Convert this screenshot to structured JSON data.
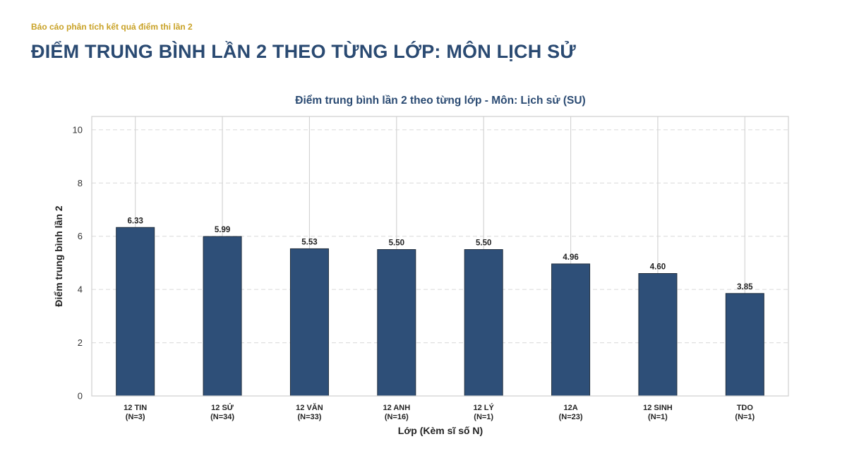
{
  "header": {
    "report_label": "Báo cáo phân tích kết quả điểm thi lần 2",
    "page_title": "ĐIỂM TRUNG BÌNH LẦN 2 THEO TỪNG LỚP: MÔN LỊCH SỬ"
  },
  "colors": {
    "bar": "#2e4f78",
    "bar_edge": "#1f2d3d",
    "title": "#2a4a72",
    "accent": "#c9a227"
  },
  "chart_data": {
    "type": "bar",
    "title": "Điểm trung bình lần 2 theo từng lớp - Môn: Lịch sử (SU)",
    "xlabel": "Lớp (Kèm sĩ số N)",
    "ylabel": "Điểm trung bình lần 2",
    "categories": [
      "12 TIN",
      "12 SỬ",
      "12 VĂN",
      "12 ANH",
      "12 LÝ",
      "12A",
      "12 SINH",
      "TDO"
    ],
    "category_counts": [
      "(N=3)",
      "(N=34)",
      "(N=33)",
      "(N=16)",
      "(N=1)",
      "(N=23)",
      "(N=1)",
      "(N=1)"
    ],
    "values": [
      6.33,
      5.99,
      5.53,
      5.5,
      5.5,
      4.96,
      4.6,
      3.85
    ],
    "value_labels": [
      "6.33",
      "5.99",
      "5.53",
      "5.50",
      "5.50",
      "4.96",
      "4.60",
      "3.85"
    ],
    "ylim": [
      0,
      10.5
    ],
    "yticks": [
      0,
      2,
      4,
      6,
      8,
      10
    ],
    "grid": true
  }
}
